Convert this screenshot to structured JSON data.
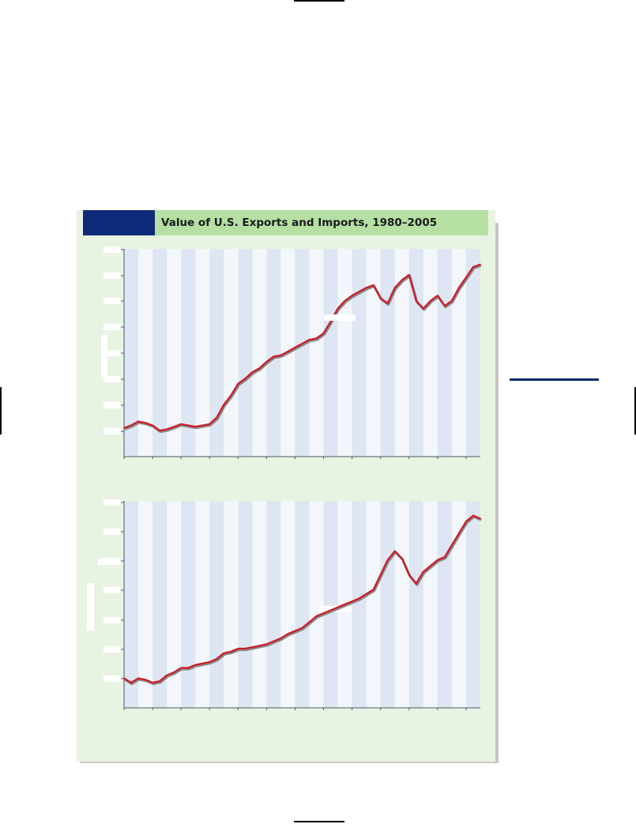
{
  "figure": {
    "title": "Value of U.S. Exports and Imports, 1980–2005"
  },
  "colors": {
    "accent_navy": "#0d2a78",
    "header_green": "#b5dfa3",
    "panel_green": "#e8f4e2",
    "band_blue": "#dde6f2",
    "band_light": "#f3f7fb",
    "line_red": "#c8202b"
  },
  "chart_data": [
    {
      "type": "line",
      "title": "",
      "xlabel": "",
      "ylabel": "",
      "xlim": [
        1980,
        2005
      ],
      "ylim": [
        0,
        8
      ],
      "grid": "alternating vertical bands",
      "x": [
        1980,
        1980.5,
        1981,
        1981.5,
        1982,
        1982.5,
        1983,
        1983.5,
        1984,
        1984.5,
        1985,
        1985.5,
        1986,
        1986.5,
        1987,
        1987.5,
        1988,
        1988.5,
        1989,
        1989.5,
        1990,
        1990.5,
        1991,
        1991.5,
        1992,
        1992.5,
        1993,
        1993.5,
        1994,
        1994.5,
        1995,
        1995.5,
        1996,
        1996.5,
        1997,
        1997.5,
        1998,
        1998.5,
        1999,
        1999.5,
        2000,
        2000.5,
        2001,
        2001.5,
        2002,
        2002.5,
        2003,
        2003.5,
        2004,
        2004.5,
        2005
      ],
      "series": [
        {
          "values": [
            1.1,
            1.2,
            1.35,
            1.3,
            1.2,
            1.0,
            1.05,
            1.15,
            1.25,
            1.2,
            1.15,
            1.2,
            1.25,
            1.5,
            2.0,
            2.35,
            2.8,
            3.0,
            3.25,
            3.4,
            3.65,
            3.85,
            3.9,
            4.05,
            4.2,
            4.35,
            4.5,
            4.55,
            4.75,
            5.2,
            5.7,
            6.0,
            6.2,
            6.35,
            6.5,
            6.6,
            6.1,
            5.9,
            6.5,
            6.8,
            7.0,
            6.0,
            5.7,
            6.0,
            6.2,
            5.8,
            6.0,
            6.5,
            6.9,
            7.3,
            7.4
          ]
        }
      ]
    },
    {
      "type": "line",
      "title": "",
      "xlabel": "",
      "ylabel": "",
      "xlim": [
        1980,
        2005
      ],
      "ylim": [
        0,
        7
      ],
      "grid": "alternating vertical bands",
      "x": [
        1980,
        1980.5,
        1981,
        1981.5,
        1982,
        1982.5,
        1983,
        1983.5,
        1984,
        1984.5,
        1985,
        1985.5,
        1986,
        1986.5,
        1987,
        1987.5,
        1988,
        1988.5,
        1989,
        1989.5,
        1990,
        1990.5,
        1991,
        1991.5,
        1992,
        1992.5,
        1993,
        1993.5,
        1994,
        1994.5,
        1995,
        1995.5,
        1996,
        1996.5,
        1997,
        1997.5,
        1998,
        1998.5,
        1999,
        1999.5,
        2000,
        2000.5,
        2001,
        2001.5,
        2002,
        2002.5,
        2003,
        2003.5,
        2004,
        2004.5,
        2005
      ],
      "series": [
        {
          "values": [
            1.0,
            0.85,
            1.0,
            0.95,
            0.85,
            0.9,
            1.1,
            1.2,
            1.35,
            1.35,
            1.45,
            1.5,
            1.55,
            1.65,
            1.85,
            1.9,
            2.0,
            2.0,
            2.05,
            2.1,
            2.15,
            2.25,
            2.35,
            2.5,
            2.6,
            2.7,
            2.9,
            3.1,
            3.2,
            3.3,
            3.4,
            3.5,
            3.6,
            3.7,
            3.85,
            4.0,
            4.5,
            5.0,
            5.3,
            5.05,
            4.5,
            4.2,
            4.6,
            4.8,
            5.0,
            5.1,
            5.5,
            5.9,
            6.3,
            6.5,
            6.4
          ]
        }
      ]
    }
  ]
}
